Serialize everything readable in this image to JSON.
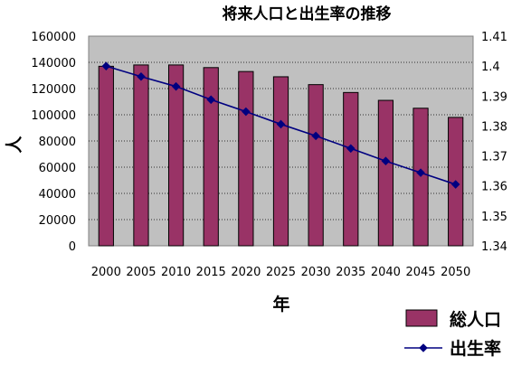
{
  "chart_data": {
    "type": "bar",
    "title": "将来人口と出生率の推移",
    "xlabel": "年",
    "ylabel": "人",
    "categories": [
      "2000",
      "2005",
      "2010",
      "2015",
      "2020",
      "2025",
      "2030",
      "2035",
      "2040",
      "2045",
      "2050"
    ],
    "series": [
      {
        "name": "総人口",
        "type": "bar",
        "axis": "left",
        "color": "#993366",
        "values": [
          137000,
          138000,
          138000,
          136000,
          133000,
          129000,
          123000,
          117000,
          111000,
          105000,
          98000
        ]
      },
      {
        "name": "出生率",
        "type": "line",
        "axis": "right",
        "color": "#000080",
        "marker": "diamond",
        "values": [
          1.4,
          1.3965,
          1.3932,
          1.3888,
          1.3848,
          1.3806,
          1.3767,
          1.3725,
          1.3683,
          1.3644,
          1.3605
        ]
      }
    ],
    "ylim_left": [
      0,
      160000
    ],
    "yticks_left": [
      "0",
      "20000",
      "40000",
      "60000",
      "80000",
      "100000",
      "120000",
      "140000",
      "160000"
    ],
    "ylim_right": [
      1.34,
      1.41
    ],
    "yticks_right": [
      "1.34",
      "1.35",
      "1.36",
      "1.37",
      "1.38",
      "1.39",
      "1.4",
      "1.41"
    ],
    "grid": "horizontal",
    "plot_background": "#c0c0c0",
    "legend_position": "bottom-right"
  }
}
